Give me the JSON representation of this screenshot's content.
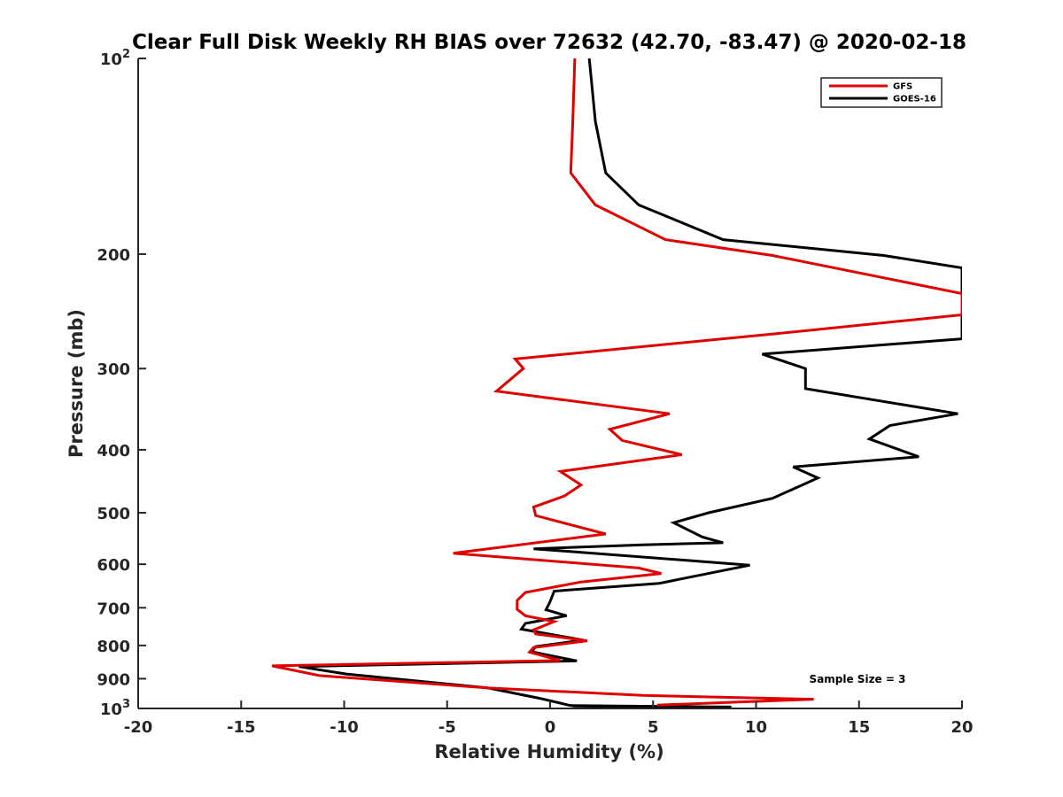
{
  "chart_data": {
    "type": "line",
    "title": "Clear Full Disk Weekly RH BIAS over 72632 (42.70, -83.47) @ 2020-02-18",
    "xlabel": "Relative Humidity (%)",
    "ylabel": "Pressure (mb)",
    "xlim": [
      -20,
      20
    ],
    "ylim": [
      100,
      1000
    ],
    "y_scale": "log",
    "y_reversed": true,
    "x_ticks": [
      "-20",
      "-15",
      "-10",
      "-5",
      "0",
      "5",
      "10",
      "15",
      "20"
    ],
    "y_ticks": [
      {
        "value": 100,
        "base": "10",
        "exp": "2"
      },
      {
        "value": 200,
        "label": "200"
      },
      {
        "value": 300,
        "label": "300"
      },
      {
        "value": 400,
        "label": "400"
      },
      {
        "value": 500,
        "label": "500"
      },
      {
        "value": 600,
        "label": "600"
      },
      {
        "value": 700,
        "label": "700"
      },
      {
        "value": 800,
        "label": "800"
      },
      {
        "value": 900,
        "label": "900"
      },
      {
        "value": 1000,
        "base": "10",
        "exp": "3"
      }
    ],
    "legend_position": "top-right",
    "annotation": "Sample Size = 3",
    "series": [
      {
        "name": "GFS",
        "color": "#e00000",
        "points": [
          [
            1.2,
            100
          ],
          [
            1.1,
            125
          ],
          [
            1.0,
            150
          ],
          [
            2.2,
            168
          ],
          [
            5.6,
            190
          ],
          [
            10.8,
            201
          ],
          [
            20.0,
            230
          ],
          [
            20.0,
            248
          ],
          [
            11.0,
            265
          ],
          [
            -1.7,
            290
          ],
          [
            -1.3,
            300
          ],
          [
            -2.6,
            325
          ],
          [
            5.8,
            352
          ],
          [
            2.9,
            372
          ],
          [
            3.5,
            387
          ],
          [
            6.4,
            407
          ],
          [
            0.5,
            432
          ],
          [
            1.5,
            453
          ],
          [
            0.7,
            471
          ],
          [
            -0.8,
            490
          ],
          [
            -0.7,
            505
          ],
          [
            2.7,
            539
          ],
          [
            -4.7,
            577
          ],
          [
            4.3,
            608
          ],
          [
            5.4,
            620
          ],
          [
            1.5,
            639
          ],
          [
            -1.2,
            663
          ],
          [
            -1.6,
            682
          ],
          [
            -1.6,
            704
          ],
          [
            -1.2,
            720
          ],
          [
            0.2,
            735
          ],
          [
            -0.8,
            757
          ],
          [
            -0.7,
            768
          ],
          [
            1.8,
            787
          ],
          [
            -0.8,
            806
          ],
          [
            -1.0,
            819
          ],
          [
            0.5,
            844
          ],
          [
            -13.5,
            860
          ],
          [
            -11.2,
            890
          ],
          [
            -3.0,
            930
          ],
          [
            4.5,
            955
          ],
          [
            12.8,
            968
          ],
          [
            5.2,
            988
          ]
        ]
      },
      {
        "name": "GOES-16",
        "color": "#000000",
        "points": [
          [
            1.9,
            100
          ],
          [
            2.2,
            125
          ],
          [
            2.7,
            150
          ],
          [
            4.3,
            168
          ],
          [
            8.4,
            190
          ],
          [
            16.2,
            201
          ],
          [
            20.0,
            210
          ],
          [
            20.0,
            270
          ],
          [
            10.3,
            285
          ],
          [
            12.4,
            300
          ],
          [
            12.4,
            322
          ],
          [
            19.8,
            352
          ],
          [
            16.5,
            367
          ],
          [
            15.5,
            385
          ],
          [
            17.9,
            410
          ],
          [
            11.8,
            425
          ],
          [
            13.0,
            442
          ],
          [
            10.8,
            475
          ],
          [
            7.7,
            500
          ],
          [
            6.0,
            518
          ],
          [
            7.4,
            545
          ],
          [
            8.4,
            556
          ],
          [
            4.5,
            560
          ],
          [
            -0.8,
            568
          ],
          [
            9.7,
            602
          ],
          [
            5.3,
            642
          ],
          [
            0.2,
            660
          ],
          [
            0.0,
            685
          ],
          [
            -0.2,
            705
          ],
          [
            0.8,
            720
          ],
          [
            -1.2,
            740
          ],
          [
            -1.4,
            755
          ],
          [
            1.6,
            785
          ],
          [
            -0.7,
            803
          ],
          [
            -0.9,
            818
          ],
          [
            1.3,
            845
          ],
          [
            -12.2,
            862
          ],
          [
            -9.9,
            885
          ],
          [
            -3.0,
            930
          ],
          [
            -0.5,
            965
          ],
          [
            1.0,
            990
          ],
          [
            8.8,
            995
          ],
          [
            8.3,
            998
          ],
          [
            1.1,
            1000
          ]
        ]
      }
    ]
  }
}
